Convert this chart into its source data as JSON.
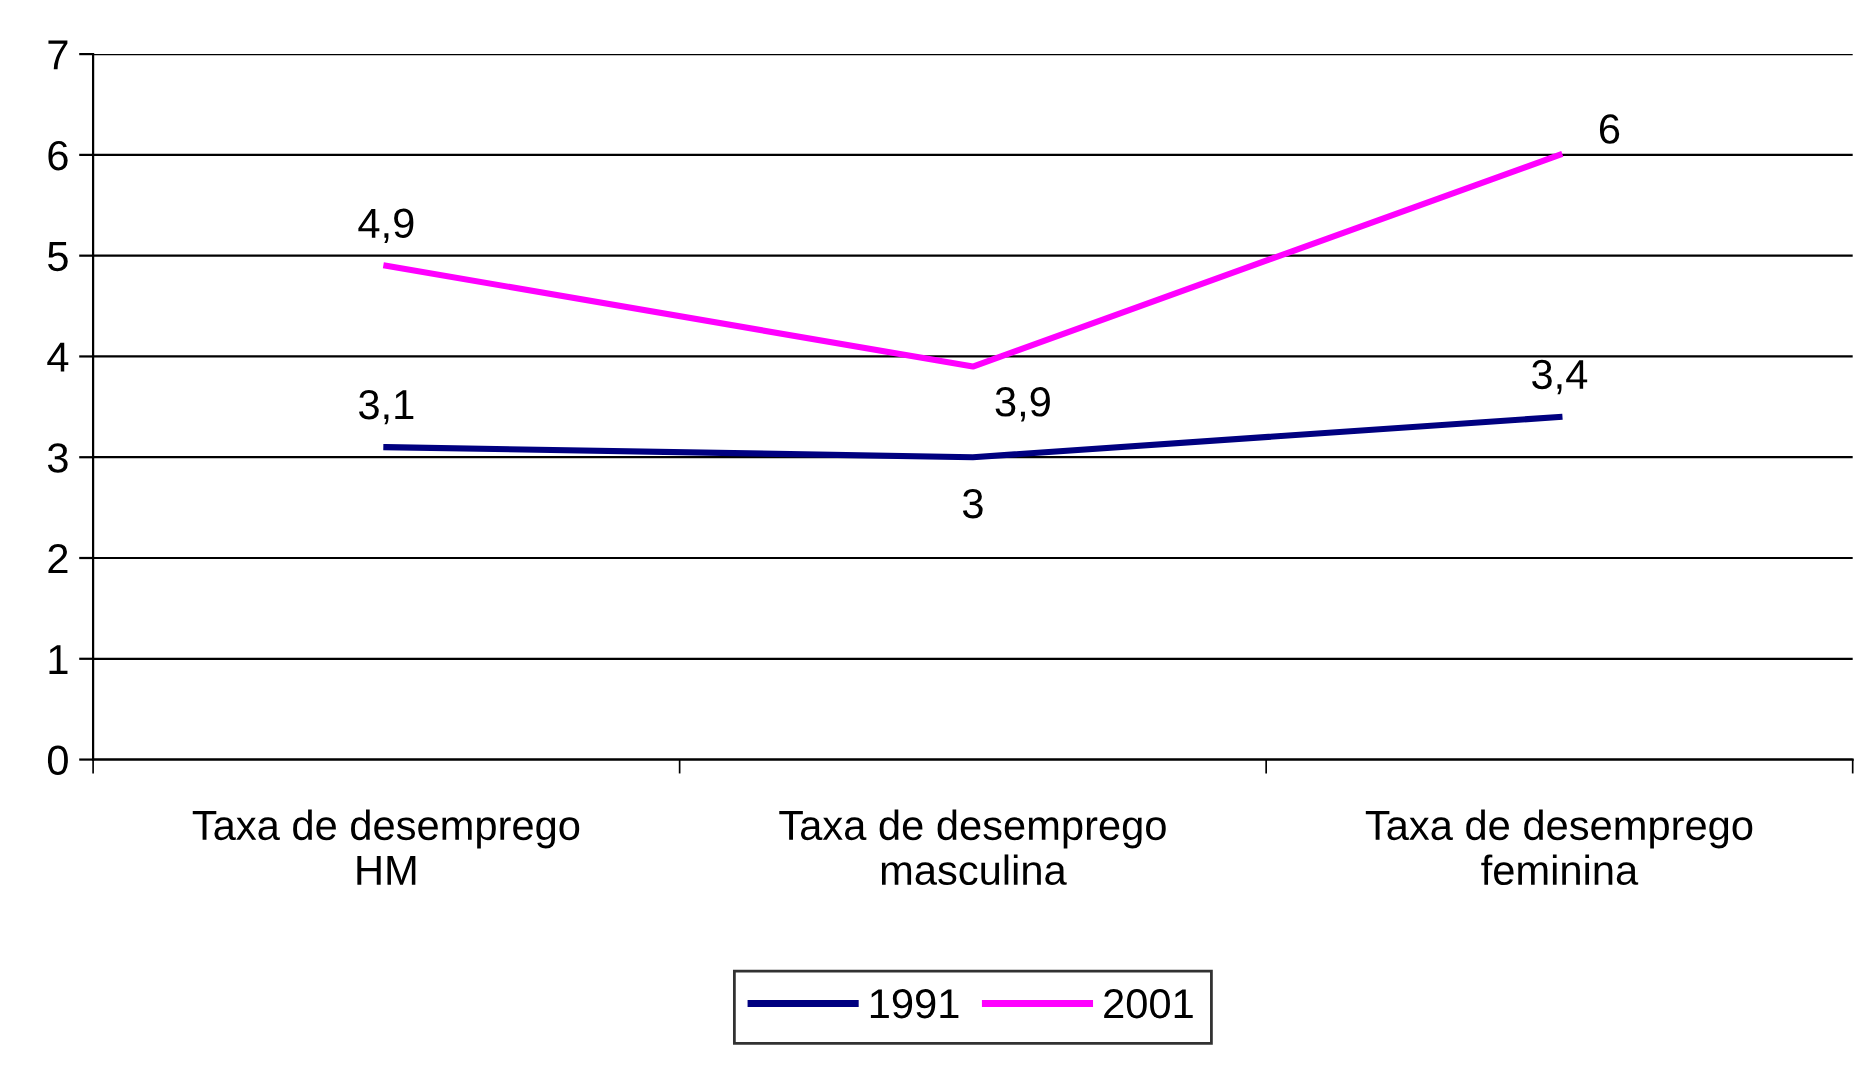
{
  "chart_data": {
    "type": "line",
    "categories": [
      "Taxa de desemprego\nHM",
      "Taxa de desemprego\nmasculina",
      "Taxa de desemprego\nfeminina"
    ],
    "series": [
      {
        "name": "1991",
        "color": "#000080",
        "values": [
          3.1,
          3.0,
          3.4
        ],
        "value_labels": [
          "3,1",
          "3",
          "3,4"
        ]
      },
      {
        "name": "2001",
        "color": "#ff00ff",
        "values": [
          4.9,
          3.9,
          6.0
        ],
        "value_labels": [
          "4,9",
          "3,9",
          "6"
        ]
      }
    ],
    "ylim": [
      0,
      7
    ],
    "yticks": [
      0,
      1,
      2,
      3,
      4,
      5,
      6,
      7
    ],
    "grid": "y",
    "legend": "bottom",
    "marker": "none",
    "line_style": "solid"
  }
}
